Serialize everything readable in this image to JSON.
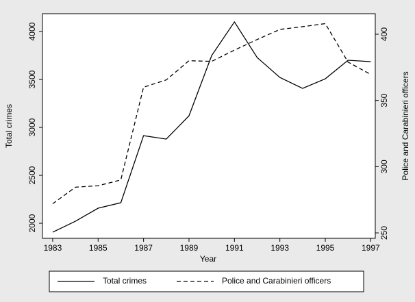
{
  "chart_data": {
    "type": "line",
    "x_label": "Year",
    "y_label": "Total crimes",
    "y2_label": "Police and Carabinieri officers",
    "x": [
      1983,
      1984,
      1985,
      1986,
      1987,
      1988,
      1989,
      1990,
      1991,
      1992,
      1993,
      1994,
      1995,
      1996,
      1997
    ],
    "series": [
      {
        "name": "Total crimes",
        "color": "#000000",
        "style": "solid",
        "axis": "y",
        "values": [
          1907,
          2021,
          2157,
          2214,
          2914,
          2878,
          3121,
          3750,
          4100,
          3729,
          3521,
          3407,
          3507,
          3700,
          3686
        ]
      },
      {
        "name": "Police and Carabinieri officers",
        "color": "#000000",
        "style": "dashed",
        "axis": "y2",
        "values": [
          272,
          284.5,
          285.6,
          290,
          360,
          365.5,
          380,
          379.5,
          388,
          396,
          403.6,
          405.7,
          408,
          379,
          369.6
        ]
      }
    ],
    "xlim": [
      1982.55,
      1997.2
    ],
    "xticks": [
      1983,
      1985,
      1987,
      1989,
      1991,
      1993,
      1995,
      1997
    ],
    "ylim": [
      1843,
      4186
    ],
    "yticks": [
      2000,
      2500,
      3000,
      3500,
      4000
    ],
    "y2lim": [
      245.9,
      415.5
    ],
    "y2ticks": [
      250,
      300,
      350,
      400
    ],
    "grid": false,
    "legend": "bottom"
  }
}
